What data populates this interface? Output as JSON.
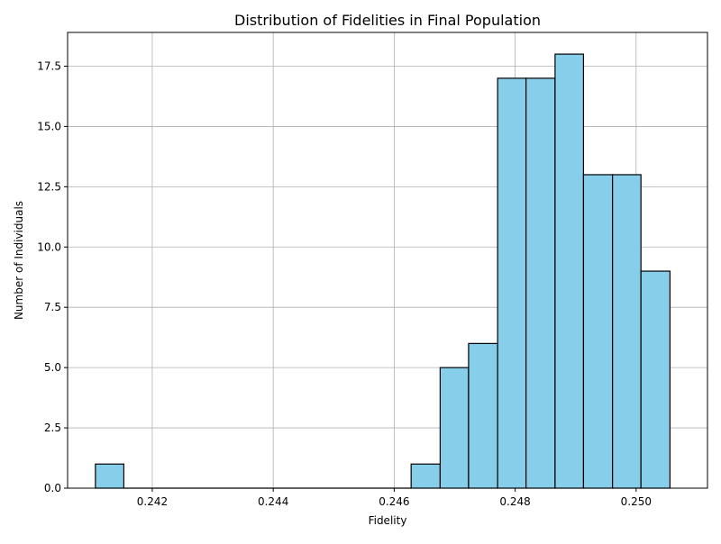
{
  "chart_data": {
    "type": "bar",
    "title": "Distribution of Fidelities in Final Population",
    "xlabel": "Fidelity",
    "ylabel": "Number of Individuals",
    "xlim": [
      0.2406,
      0.25118
    ],
    "ylim": [
      0,
      18.9
    ],
    "grid": true,
    "bar_color": "#87ceeb",
    "edge_color": "#000000",
    "bins": [
      {
        "x0": 0.24106,
        "x1": 0.24153,
        "count": 1
      },
      {
        "x0": 0.24153,
        "x1": 0.24201,
        "count": 0
      },
      {
        "x0": 0.24201,
        "x1": 0.24248,
        "count": 0
      },
      {
        "x0": 0.24248,
        "x1": 0.24296,
        "count": 0
      },
      {
        "x0": 0.24296,
        "x1": 0.24343,
        "count": 0
      },
      {
        "x0": 0.24343,
        "x1": 0.24391,
        "count": 0
      },
      {
        "x0": 0.24391,
        "x1": 0.24438,
        "count": 0
      },
      {
        "x0": 0.24438,
        "x1": 0.24486,
        "count": 0
      },
      {
        "x0": 0.24486,
        "x1": 0.24533,
        "count": 0
      },
      {
        "x0": 0.24533,
        "x1": 0.24581,
        "count": 0
      },
      {
        "x0": 0.24581,
        "x1": 0.24628,
        "count": 0
      },
      {
        "x0": 0.24628,
        "x1": 0.24676,
        "count": 1
      },
      {
        "x0": 0.24676,
        "x1": 0.24723,
        "count": 5
      },
      {
        "x0": 0.24723,
        "x1": 0.24771,
        "count": 6
      },
      {
        "x0": 0.24771,
        "x1": 0.24818,
        "count": 17
      },
      {
        "x0": 0.24818,
        "x1": 0.24866,
        "count": 17
      },
      {
        "x0": 0.24866,
        "x1": 0.24913,
        "count": 18
      },
      {
        "x0": 0.24913,
        "x1": 0.24961,
        "count": 13
      },
      {
        "x0": 0.24961,
        "x1": 0.25008,
        "count": 13
      },
      {
        "x0": 0.25008,
        "x1": 0.25056,
        "count": 9
      }
    ],
    "x_ticks": [
      {
        "value": 0.242,
        "label": "0.242"
      },
      {
        "value": 0.244,
        "label": "0.244"
      },
      {
        "value": 0.246,
        "label": "0.246"
      },
      {
        "value": 0.248,
        "label": "0.248"
      },
      {
        "value": 0.25,
        "label": "0.250"
      }
    ],
    "y_ticks": [
      {
        "value": 0.0,
        "label": "0.0"
      },
      {
        "value": 2.5,
        "label": "2.5"
      },
      {
        "value": 5.0,
        "label": "5.0"
      },
      {
        "value": 7.5,
        "label": "7.5"
      },
      {
        "value": 10.0,
        "label": "10.0"
      },
      {
        "value": 12.5,
        "label": "12.5"
      },
      {
        "value": 15.0,
        "label": "15.0"
      },
      {
        "value": 17.5,
        "label": "17.5"
      }
    ]
  }
}
